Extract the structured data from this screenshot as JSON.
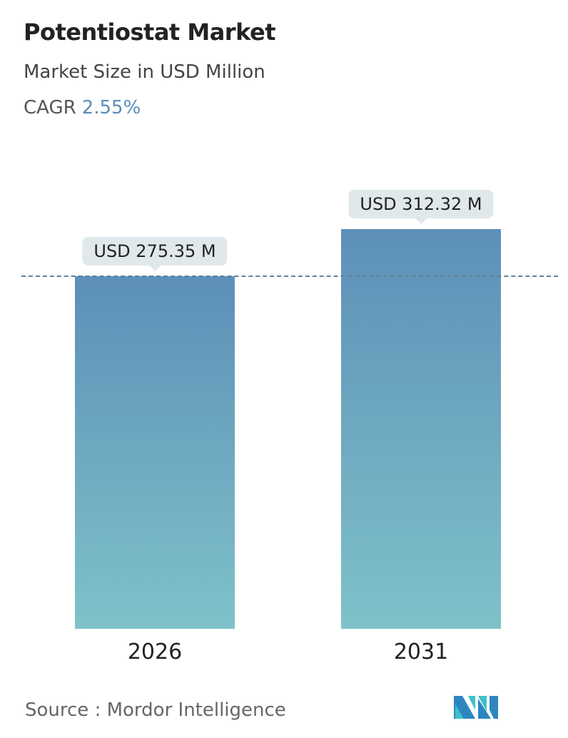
{
  "header": {
    "title": "Potentiostat Market",
    "subtitle": "Market Size in USD Million",
    "cagr_label": "CAGR",
    "cagr_value": "2.55%"
  },
  "chart_data": {
    "type": "bar",
    "categories": [
      "2026",
      "2031"
    ],
    "values": [
      275.35,
      312.32
    ],
    "data_labels": [
      "USD 275.35 M",
      "USD 312.32 M"
    ],
    "reference_line": 275.35,
    "colors": {
      "bar_top": "#5d8fb8",
      "bar_bottom": "#7fc2c9",
      "accent": "#5b8db8"
    },
    "grid": false
  },
  "footer": {
    "source": "Source :  Mordor Intelligence",
    "logo": "Mordor Intelligence logo"
  }
}
